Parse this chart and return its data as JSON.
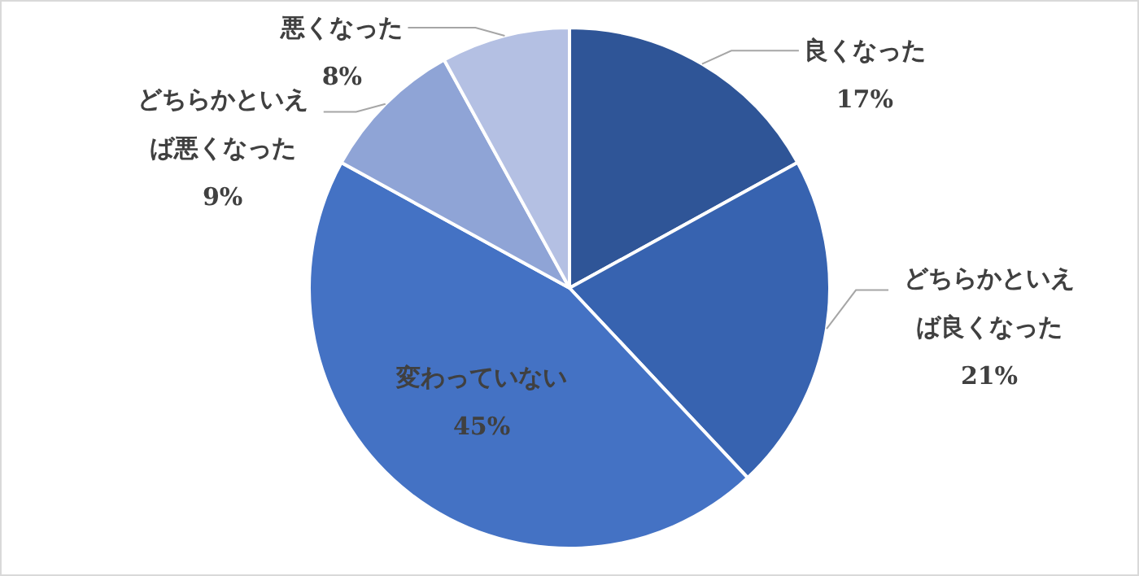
{
  "chart_data": {
    "type": "pie",
    "categories": [
      "良くなった",
      "どちらかといえば良くなった",
      "変わっていない",
      "どちらかといえば悪くなった",
      "悪くなった"
    ],
    "values": [
      17,
      21,
      45,
      9,
      8
    ],
    "value_labels": [
      "17%",
      "21%",
      "45%",
      "9%",
      "8%"
    ],
    "colors": [
      "#2f5597",
      "#3763b0",
      "#4472c4",
      "#8fa4d6",
      "#b4c0e3"
    ]
  }
}
